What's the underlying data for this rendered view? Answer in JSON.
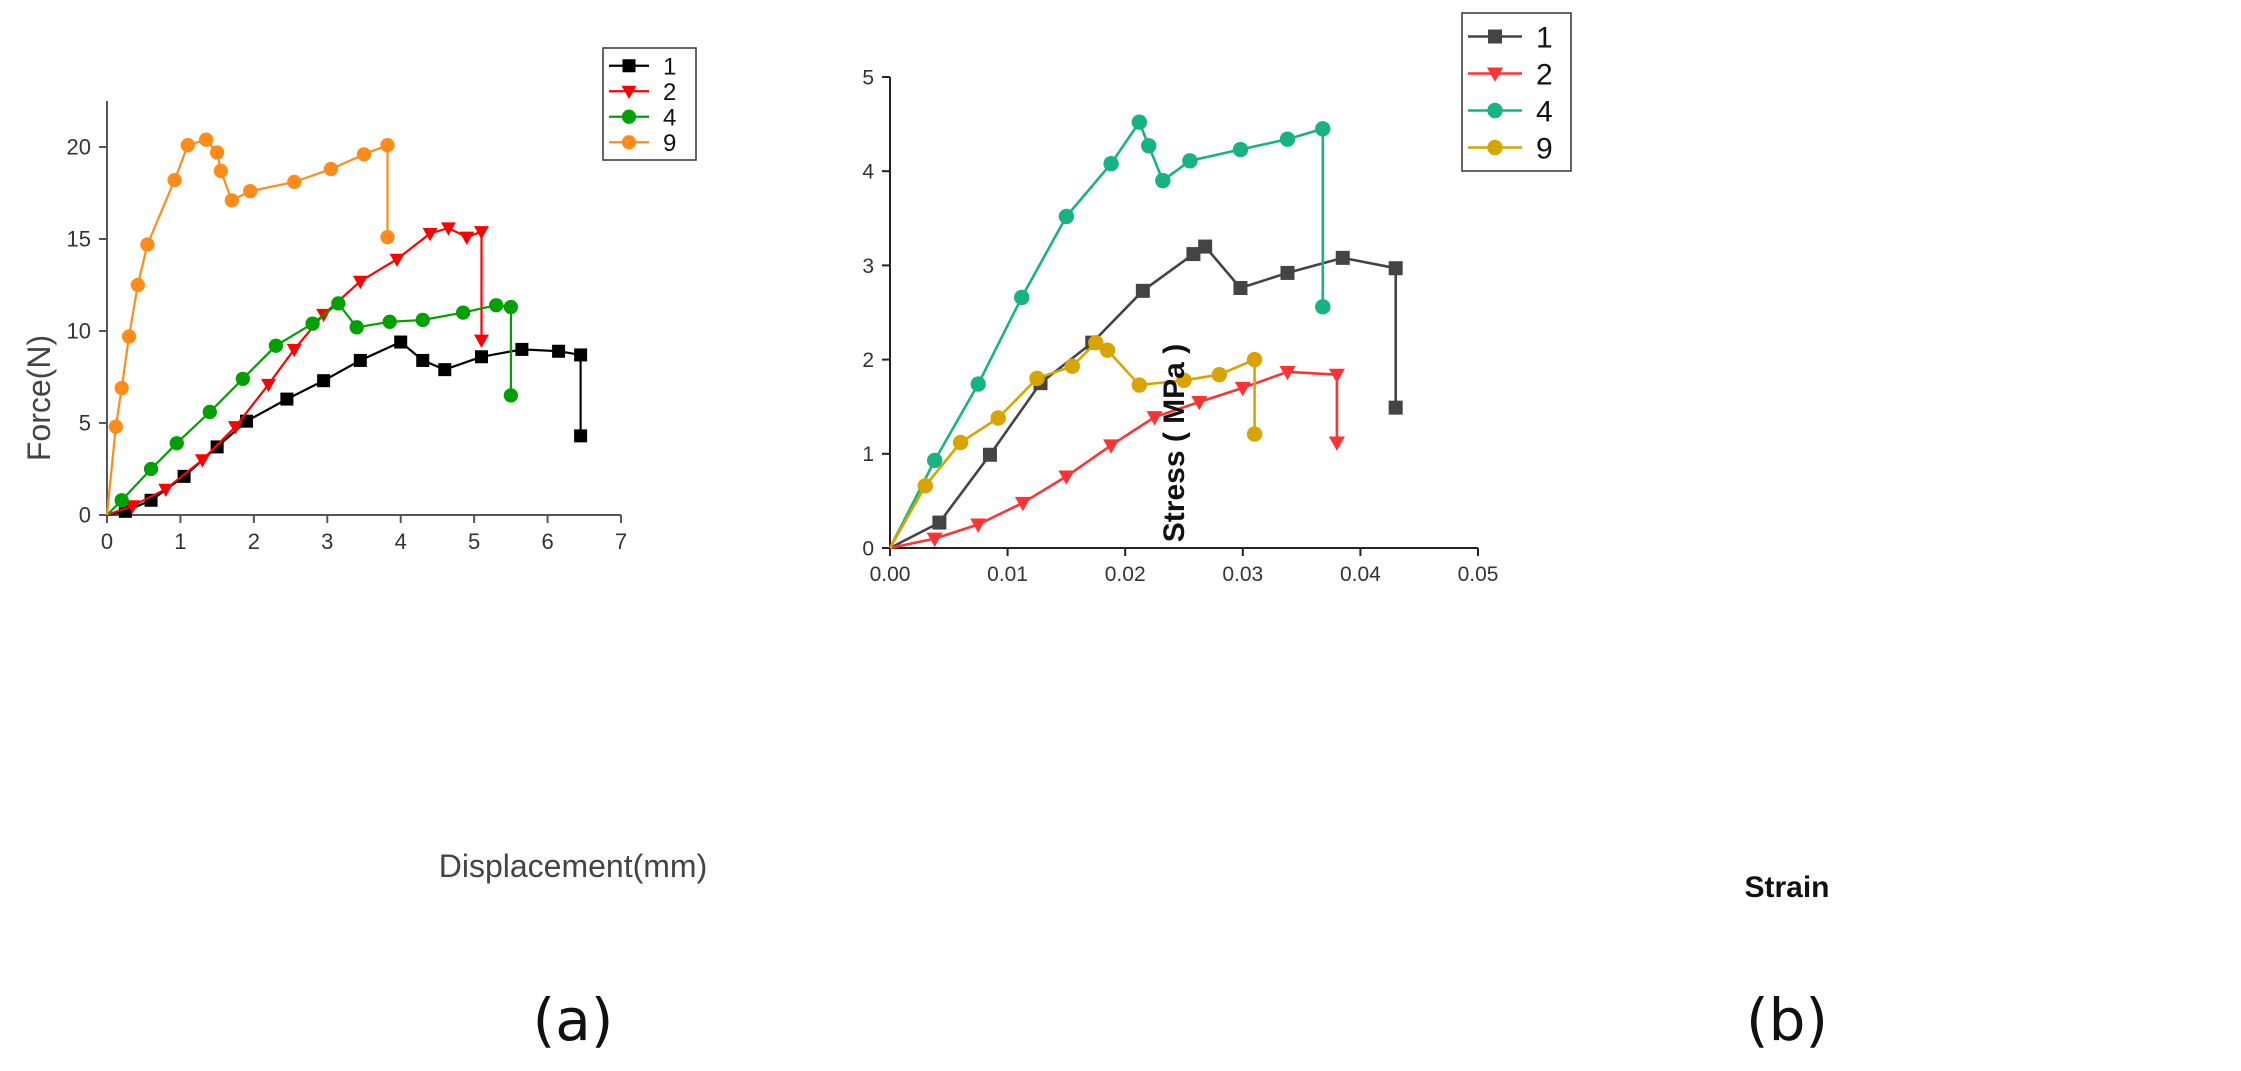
{
  "panels": [
    {
      "label": "(a)",
      "chart_data": {
        "type": "line",
        "title": "",
        "xlabel": "Displacement(mm)",
        "ylabel": "Force(N)",
        "xlim": [
          0,
          7
        ],
        "ylim": [
          0,
          22.5
        ],
        "xticks": [
          0,
          1,
          2,
          3,
          4,
          5,
          6,
          7
        ],
        "yticks": [
          0,
          5,
          10,
          15,
          20
        ],
        "grid": false,
        "legend_position": "top-right",
        "series": [
          {
            "name": "1",
            "color": "#000000",
            "marker": "square",
            "x": [
              0,
              0.25,
              0.6,
              1.05,
              1.5,
              1.9,
              2.45,
              2.95,
              3.45,
              4.0,
              4.3,
              4.6,
              5.1,
              5.65,
              6.15,
              6.45,
              6.45
            ],
            "y": [
              0,
              0.2,
              0.8,
              2.1,
              3.7,
              5.1,
              6.3,
              7.3,
              8.4,
              9.4,
              8.4,
              7.9,
              8.6,
              9.0,
              8.9,
              8.7,
              4.3
            ]
          },
          {
            "name": "2",
            "color": "#ff0000",
            "marker": "triangle-down",
            "x": [
              0,
              0.35,
              0.8,
              1.3,
              1.75,
              2.2,
              2.55,
              2.95,
              3.45,
              3.95,
              4.4,
              4.65,
              4.9,
              5.1,
              5.1
            ],
            "y": [
              0,
              0.5,
              1.4,
              3.0,
              4.8,
              7.1,
              9.0,
              10.9,
              12.7,
              13.9,
              15.3,
              15.6,
              15.1,
              15.4,
              9.5
            ]
          },
          {
            "name": "4",
            "color": "#00a000",
            "marker": "circle",
            "x": [
              0,
              0.2,
              0.6,
              0.95,
              1.4,
              1.85,
              2.3,
              2.8,
              3.15,
              3.4,
              3.85,
              4.3,
              4.85,
              5.3,
              5.5,
              5.5
            ],
            "y": [
              0,
              0.8,
              2.5,
              3.9,
              5.6,
              7.4,
              9.2,
              10.4,
              11.5,
              10.2,
              10.5,
              10.6,
              11.0,
              11.4,
              11.3,
              6.5
            ]
          },
          {
            "name": "9",
            "color": "#ff8c1a",
            "marker": "circle",
            "x": [
              0,
              0.12,
              0.2,
              0.3,
              0.42,
              0.55,
              0.92,
              1.1,
              1.35,
              1.5,
              1.55,
              1.7,
              1.95,
              2.55,
              3.05,
              3.5,
              3.82,
              3.82
            ],
            "y": [
              0,
              4.8,
              6.9,
              9.7,
              12.5,
              14.7,
              18.2,
              20.1,
              20.4,
              19.7,
              18.7,
              17.1,
              17.6,
              18.1,
              18.8,
              19.6,
              20.1,
              15.1
            ]
          }
        ]
      }
    },
    {
      "label": "(b)",
      "chart_data": {
        "type": "line",
        "title": "",
        "xlabel": "Strain",
        "ylabel": "Stress ( MPa )",
        "xlim": [
          0,
          0.05
        ],
        "ylim": [
          0,
          5
        ],
        "xticks": [
          "0.00",
          "0.01",
          "0.02",
          "0.03",
          "0.04",
          "0.05"
        ],
        "yticks": [
          0,
          1,
          2,
          3,
          4,
          5
        ],
        "grid": false,
        "legend_position": "top-right",
        "series": [
          {
            "name": "1",
            "color": "#444444",
            "marker": "square",
            "x": [
              0,
              0.0042,
              0.0085,
              0.0128,
              0.0172,
              0.0215,
              0.0258,
              0.0268,
              0.0298,
              0.0338,
              0.0385,
              0.043,
              0.043
            ],
            "y": [
              0,
              0.27,
              0.99,
              1.75,
              2.18,
              2.73,
              3.12,
              3.2,
              2.76,
              2.92,
              3.08,
              2.97,
              1.49
            ]
          },
          {
            "name": "2",
            "color": "#ff3333",
            "marker": "triangle-down",
            "x": [
              0,
              0.0038,
              0.0075,
              0.0113,
              0.015,
              0.0188,
              0.0225,
              0.0263,
              0.03,
              0.0338,
              0.038,
              0.038
            ],
            "y": [
              0,
              0.1,
              0.25,
              0.48,
              0.76,
              1.09,
              1.39,
              1.55,
              1.7,
              1.87,
              1.84,
              1.12
            ]
          },
          {
            "name": "4",
            "color": "#17b384",
            "marker": "circle",
            "x": [
              0,
              0.0038,
              0.0075,
              0.0112,
              0.015,
              0.0188,
              0.0212,
              0.022,
              0.0232,
              0.0255,
              0.0298,
              0.0338,
              0.0368,
              0.0368
            ],
            "y": [
              0,
              0.93,
              1.74,
              2.66,
              3.52,
              4.08,
              4.52,
              4.27,
              3.9,
              4.11,
              4.23,
              4.34,
              4.45,
              2.56
            ]
          },
          {
            "name": "9",
            "color": "#d9a300",
            "marker": "circle",
            "x": [
              0,
              0.003,
              0.006,
              0.0092,
              0.0125,
              0.0155,
              0.0175,
              0.0185,
              0.0212,
              0.025,
              0.028,
              0.031,
              0.031
            ],
            "y": [
              0,
              0.66,
              1.12,
              1.38,
              1.8,
              1.93,
              2.18,
              2.1,
              1.73,
              1.78,
              1.84,
              2.0,
              1.21
            ]
          }
        ]
      }
    }
  ]
}
